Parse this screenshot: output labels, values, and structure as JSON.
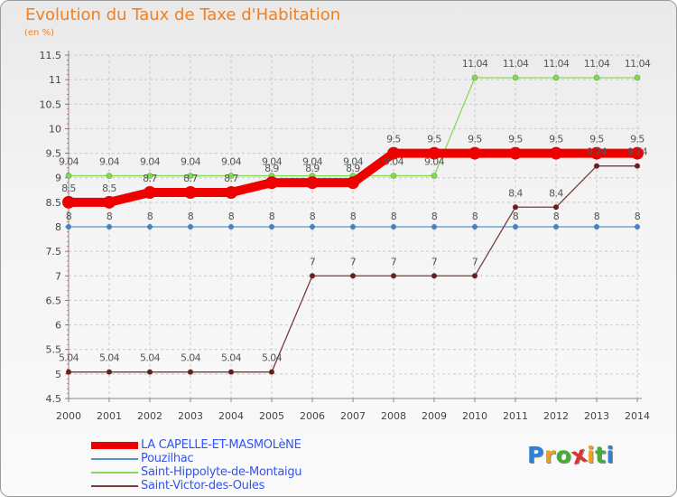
{
  "header": {
    "title": "Evolution du Taux de Taxe d'Habitation",
    "unit": "(en %)"
  },
  "logo": {
    "text": "Proxiti",
    "letters": [
      "P",
      "r",
      "o",
      "x",
      "i",
      "t",
      "i"
    ],
    "colors": [
      "#2f80d0",
      "#f0a020",
      "#40b030",
      "#e03030",
      "#f0a020",
      "#40b030",
      "#2f80d0"
    ]
  },
  "chart_data": {
    "type": "line",
    "title": "Evolution du Taux de Taxe d'Habitation",
    "ylabel": "(en %)",
    "xlabel": "",
    "x": [
      "2000",
      "2001",
      "2002",
      "2003",
      "2004",
      "2005",
      "2006",
      "2007",
      "2008",
      "2009",
      "2010",
      "2011",
      "2012",
      "2013",
      "2014"
    ],
    "ylim": [
      4.5,
      11.5
    ],
    "yticks": [
      "4.5",
      "5",
      "5.5",
      "6",
      "6.5",
      "7",
      "7.5",
      "8",
      "8.5",
      "9",
      "9.5",
      "10",
      "10.5",
      "11",
      "11.5"
    ],
    "grid": true,
    "legend_position": "bottom-left",
    "series": [
      {
        "name": "LA CAPELLE-ET-MASMOLèNE",
        "color": "#ee0000",
        "thick": true,
        "values": [
          8.5,
          8.5,
          8.7,
          8.7,
          8.7,
          8.9,
          8.9,
          8.9,
          9.5,
          9.5,
          9.5,
          9.5,
          9.5,
          9.5,
          9.5
        ],
        "labels": [
          "8.5",
          "8.5",
          "8.7",
          "8.7",
          "8.7",
          "8.9",
          "8.9",
          "8.9",
          "9.5",
          "9.5",
          "9.5",
          "9.5",
          "9.5",
          "9.5",
          "9.5"
        ]
      },
      {
        "name": "Pouzilhac",
        "color": "#5b93c8",
        "thick": false,
        "values": [
          8,
          8,
          8,
          8,
          8,
          8,
          8,
          8,
          8,
          8,
          8,
          8,
          8,
          8,
          8
        ],
        "labels": [
          "8",
          "8",
          "8",
          "8",
          "8",
          "8",
          "8",
          "8",
          "8",
          "8",
          "8",
          "8",
          "8",
          "8",
          "8"
        ]
      },
      {
        "name": "Saint-Hippolyte-de-Montaigu",
        "color": "#88d858",
        "thick": false,
        "values": [
          9.04,
          9.04,
          9.04,
          9.04,
          9.04,
          9.04,
          9.04,
          9.04,
          9.04,
          9.04,
          11.04,
          11.04,
          11.04,
          11.04,
          11.04
        ],
        "labels": [
          "9.04",
          "9.04",
          "9.04",
          "9.04",
          "9.04",
          "9.04",
          "9.04",
          "9.04",
          "9.04",
          "9.04",
          "11.04",
          "11.04",
          "11.04",
          "11.04",
          "11.04"
        ]
      },
      {
        "name": "Saint-Victor-des-Oules",
        "color": "#7a3b3b",
        "thick": false,
        "values": [
          5.04,
          5.04,
          5.04,
          5.04,
          5.04,
          5.04,
          7,
          7,
          7,
          7,
          7,
          8.4,
          8.4,
          9.24,
          9.24
        ],
        "labels": [
          "5.04",
          "5.04",
          "5.04",
          "5.04",
          "5.04",
          "5.04",
          "7",
          "7",
          "7",
          "7",
          "7",
          "8.4",
          "8.4",
          "9.24",
          "9.24"
        ]
      }
    ]
  }
}
